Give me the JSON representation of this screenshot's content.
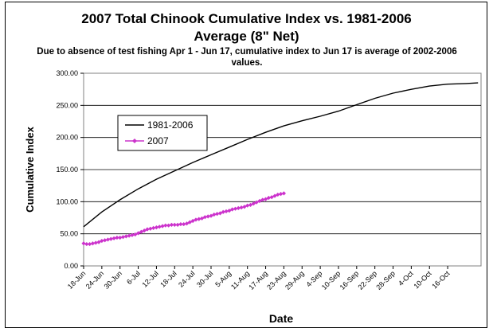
{
  "chart_data": {
    "type": "line",
    "title_line1": "2007 Total Chinook  Cumulative Index vs. 1981-2006",
    "title_line2": "Average (8\" Net)",
    "subtitle": "Due to absence of test fishing Apr 1 - Jun 17, cumulative index to Jun 17 is average of 2002-2006 values.",
    "xlabel": "Date",
    "ylabel": "Cumulative Index",
    "ylim": [
      0,
      300
    ],
    "yticks": [
      "0.00",
      "50.00",
      "100.00",
      "150.00",
      "200.00",
      "250.00",
      "300.00"
    ],
    "grid": true,
    "legend_position": "upper-left",
    "x_categories": [
      "18-Jun",
      "24-Jun",
      "30-Jun",
      "6-Jul",
      "12-Jul",
      "18-Jul",
      "24-Jul",
      "30-Jul",
      "5-Aug",
      "11-Aug",
      "17-Aug",
      "23-Aug",
      "29-Aug",
      "4-Sep",
      "10-Sep",
      "16-Sep",
      "22-Sep",
      "28-Sep",
      "4-Oct",
      "10-Oct",
      "16-Oct"
    ],
    "series": [
      {
        "name": "1981-2006",
        "color": "#000000",
        "marker": "none",
        "x_day": [
          0,
          6,
          12,
          18,
          24,
          30,
          36,
          42,
          48,
          54,
          60,
          66,
          72,
          78,
          84,
          90,
          96,
          102,
          108,
          114,
          120,
          126,
          130
        ],
        "values": [
          61,
          84,
          103,
          120,
          135,
          148,
          161,
          173,
          185,
          197,
          208,
          218,
          226,
          233,
          241,
          251,
          261,
          269,
          275,
          280,
          283,
          284,
          285
        ]
      },
      {
        "name": "2007",
        "color": "#cc33cc",
        "marker": "diamond",
        "x_day": [
          0,
          1,
          2,
          3,
          4,
          5,
          6,
          7,
          8,
          9,
          10,
          11,
          12,
          13,
          14,
          15,
          16,
          17,
          18,
          19,
          20,
          21,
          22,
          23,
          24,
          25,
          26,
          27,
          28,
          29,
          30,
          31,
          32,
          33,
          34,
          35,
          36,
          37,
          38,
          39,
          40,
          41,
          42,
          43,
          44,
          45,
          46,
          47,
          48,
          49,
          50,
          51,
          52,
          53,
          54,
          55,
          56,
          57,
          58,
          59,
          60,
          61,
          62,
          63,
          64,
          65,
          66
        ],
        "values": [
          35,
          34,
          34,
          35,
          36,
          37,
          39,
          40,
          41,
          42,
          43,
          44,
          44,
          45,
          46,
          47,
          48,
          49,
          51,
          53,
          55,
          57,
          58,
          59,
          60,
          61,
          62,
          63,
          63,
          64,
          64,
          64,
          65,
          65,
          66,
          68,
          70,
          72,
          73,
          74,
          76,
          77,
          78,
          80,
          81,
          82,
          84,
          85,
          86,
          88,
          89,
          90,
          91,
          92,
          94,
          95,
          97,
          99,
          101,
          103,
          104,
          106,
          107,
          109,
          111,
          112,
          113
        ]
      }
    ]
  }
}
